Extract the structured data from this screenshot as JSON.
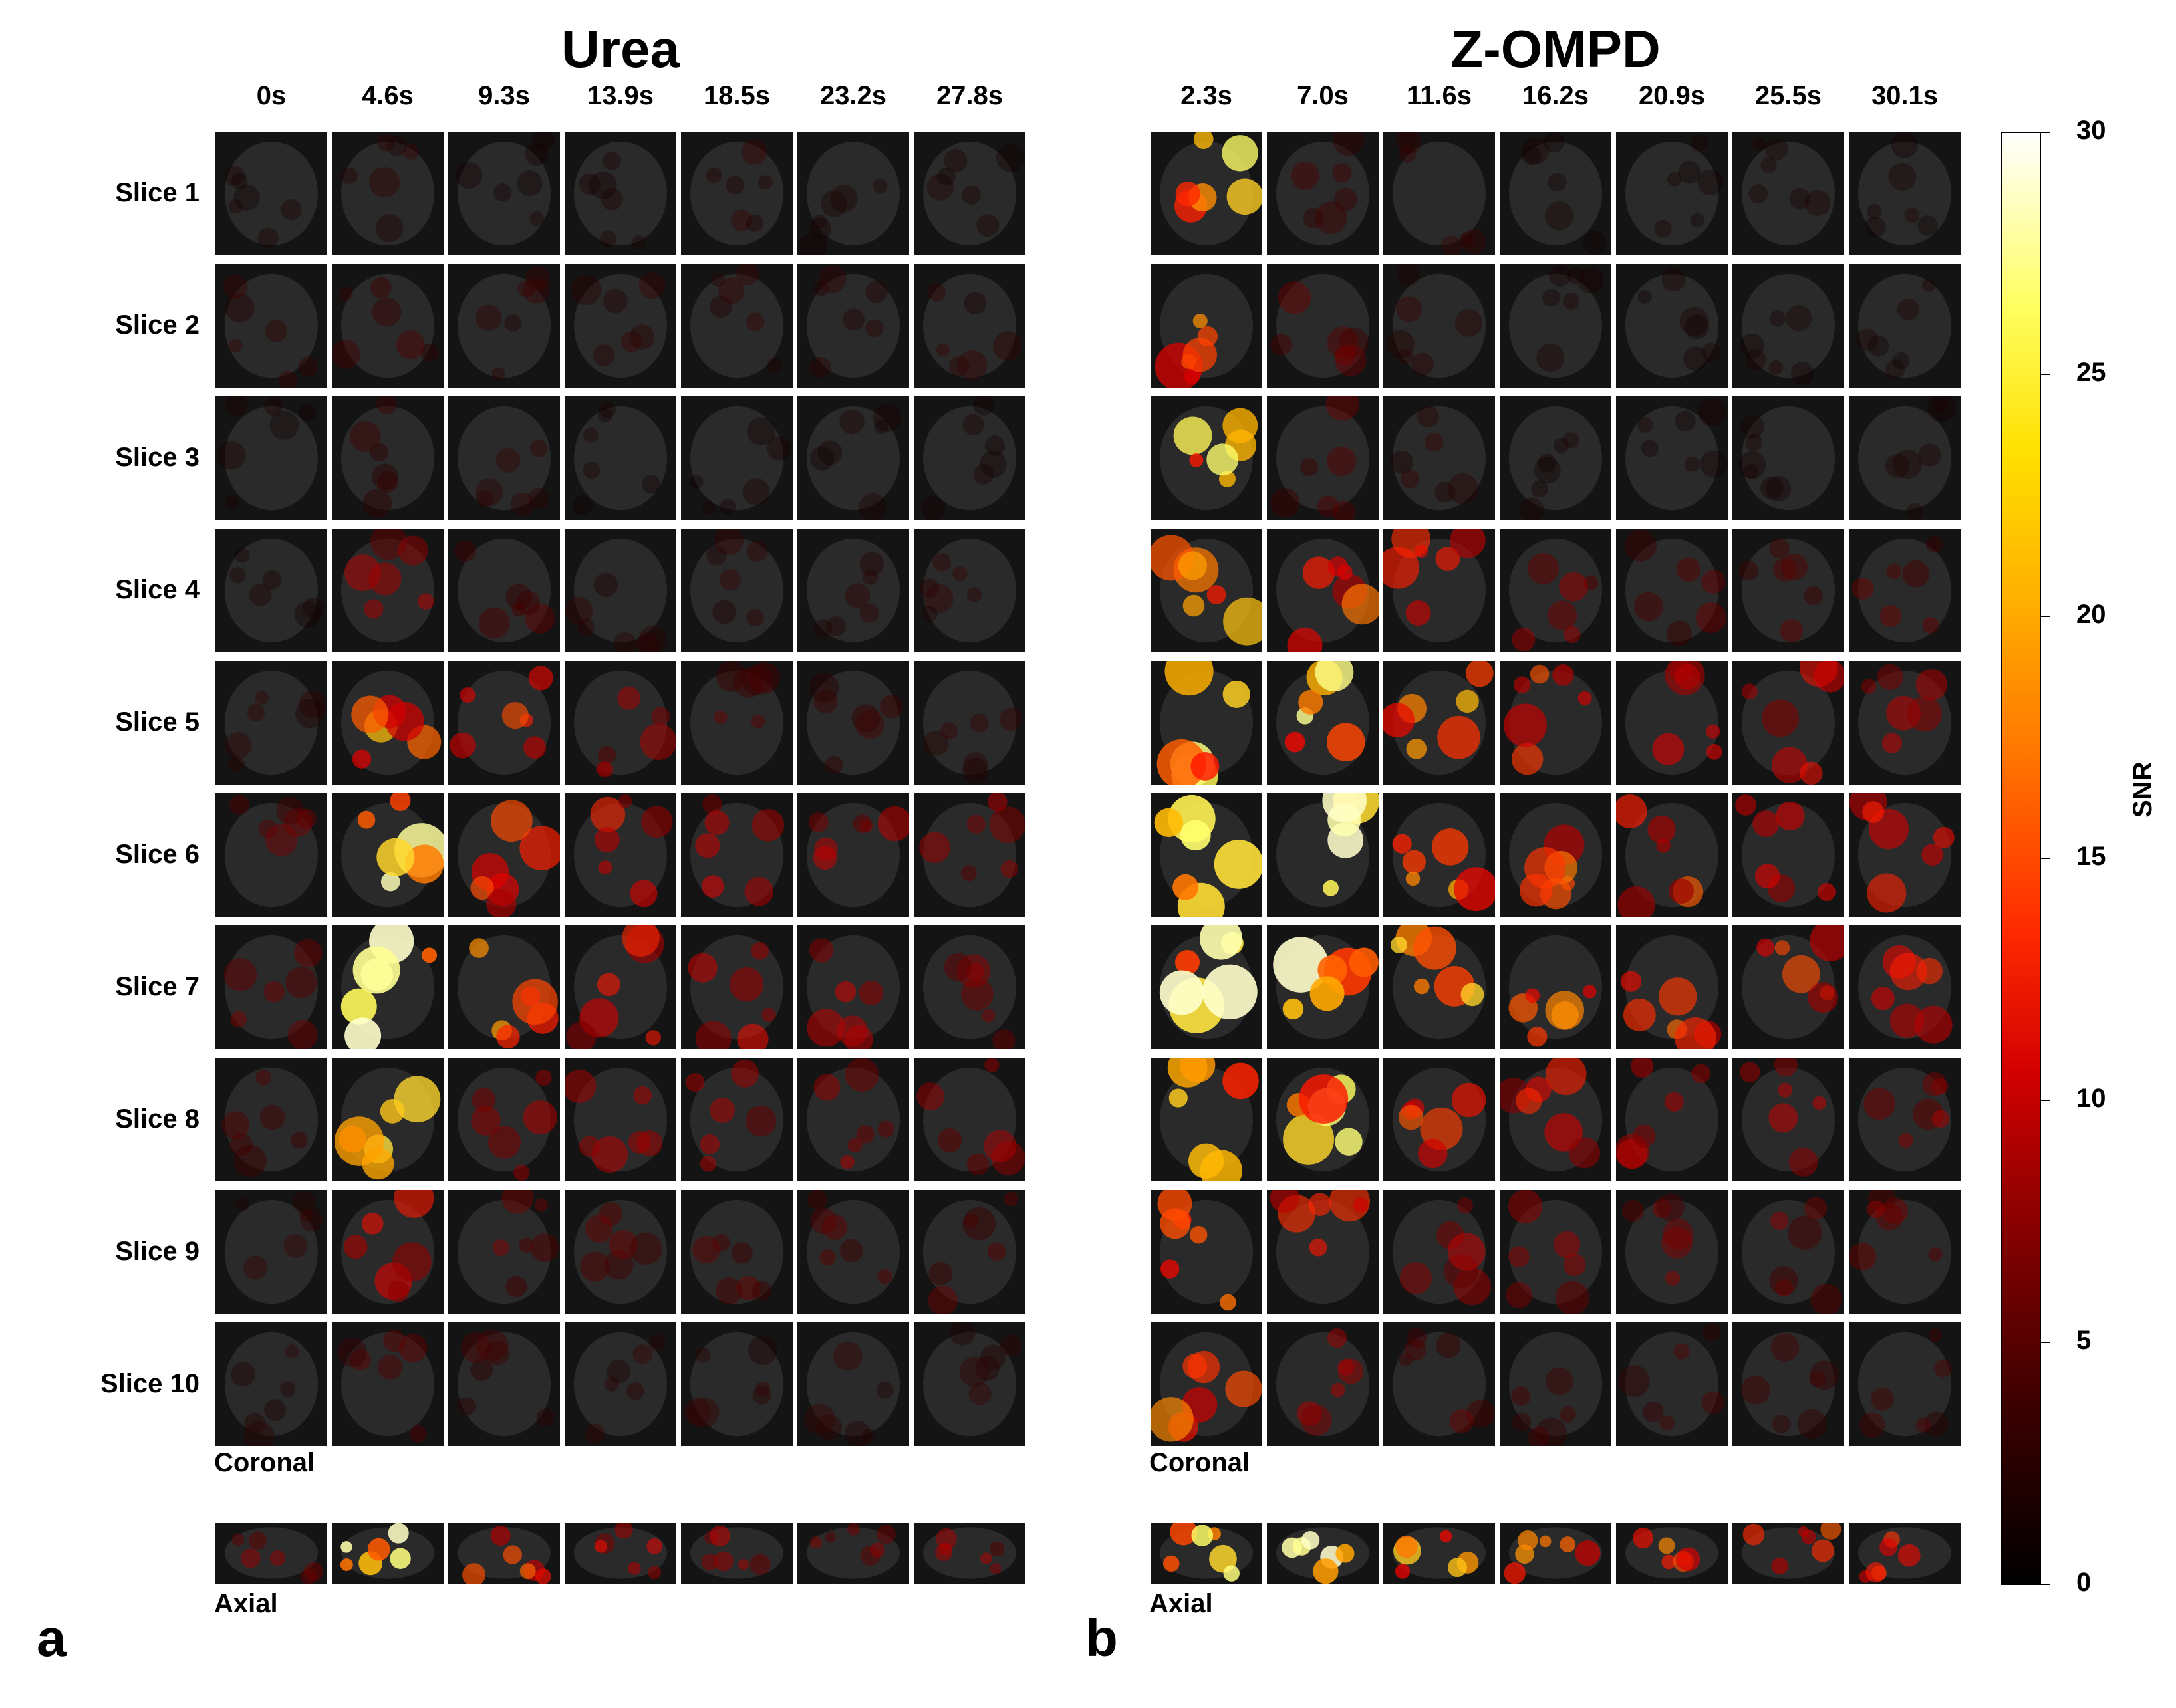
{
  "panels": [
    {
      "letter": "a",
      "title": "Urea",
      "times": [
        "0s",
        "4.6s",
        "9.3s",
        "13.9s",
        "18.5s",
        "23.2s",
        "27.8s"
      ],
      "coronal_caption": "Coronal",
      "axial_caption": "Axial"
    },
    {
      "letter": "b",
      "title": "Z-OMPD",
      "times": [
        "2.3s",
        "7.0s",
        "11.6s",
        "16.2s",
        "20.9s",
        "25.5s",
        "30.1s"
      ],
      "coronal_caption": "Coronal",
      "axial_caption": "Axial"
    }
  ],
  "slices": [
    "Slice 1",
    "Slice 2",
    "Slice 3",
    "Slice 4",
    "Slice 5",
    "Slice 6",
    "Slice 7",
    "Slice 8",
    "Slice 9",
    "Slice 10"
  ],
  "colorbar": {
    "label": "SNR",
    "range": [
      0,
      30
    ],
    "ticks": [
      "30",
      "25",
      "20",
      "15",
      "10",
      "5",
      "0"
    ],
    "colormap": "hot"
  },
  "intensity": {
    "urea": [
      [
        0.05,
        0.1,
        0.05,
        0.05,
        0.1,
        0.05,
        0.05
      ],
      [
        0.1,
        0.15,
        0.1,
        0.1,
        0.1,
        0.1,
        0.1
      ],
      [
        0.05,
        0.15,
        0.1,
        0.05,
        0.05,
        0.05,
        0.05
      ],
      [
        0.05,
        0.3,
        0.2,
        0.1,
        0.1,
        0.1,
        0.1
      ],
      [
        0.1,
        0.7,
        0.5,
        0.3,
        0.2,
        0.15,
        0.1
      ],
      [
        0.2,
        0.9,
        0.6,
        0.45,
        0.4,
        0.35,
        0.3
      ],
      [
        0.25,
        1.0,
        0.65,
        0.45,
        0.4,
        0.35,
        0.3
      ],
      [
        0.2,
        0.8,
        0.4,
        0.35,
        0.3,
        0.3,
        0.3
      ],
      [
        0.1,
        0.45,
        0.25,
        0.2,
        0.2,
        0.2,
        0.2
      ],
      [
        0.1,
        0.2,
        0.15,
        0.1,
        0.1,
        0.1,
        0.1
      ]
    ],
    "z_ompd": [
      [
        0.8,
        0.15,
        0.1,
        0.05,
        0.05,
        0.05,
        0.05
      ],
      [
        0.7,
        0.2,
        0.1,
        0.05,
        0.05,
        0.05,
        0.05
      ],
      [
        0.8,
        0.2,
        0.1,
        0.05,
        0.05,
        0.05,
        0.05
      ],
      [
        0.7,
        0.6,
        0.5,
        0.3,
        0.2,
        0.2,
        0.2
      ],
      [
        0.9,
        0.85,
        0.7,
        0.55,
        0.45,
        0.4,
        0.35
      ],
      [
        1.0,
        0.95,
        0.75,
        0.6,
        0.55,
        0.5,
        0.45
      ],
      [
        1.0,
        1.0,
        0.8,
        0.65,
        0.55,
        0.5,
        0.45
      ],
      [
        0.9,
        0.85,
        0.55,
        0.45,
        0.4,
        0.35,
        0.3
      ],
      [
        0.8,
        0.5,
        0.35,
        0.3,
        0.25,
        0.25,
        0.25
      ],
      [
        0.6,
        0.3,
        0.2,
        0.15,
        0.15,
        0.15,
        0.15
      ]
    ],
    "urea_axial": [
      0.3,
      0.95,
      0.6,
      0.4,
      0.35,
      0.3,
      0.3
    ],
    "z_ompd_axial": [
      0.9,
      0.95,
      0.8,
      0.7,
      0.6,
      0.55,
      0.5
    ]
  }
}
